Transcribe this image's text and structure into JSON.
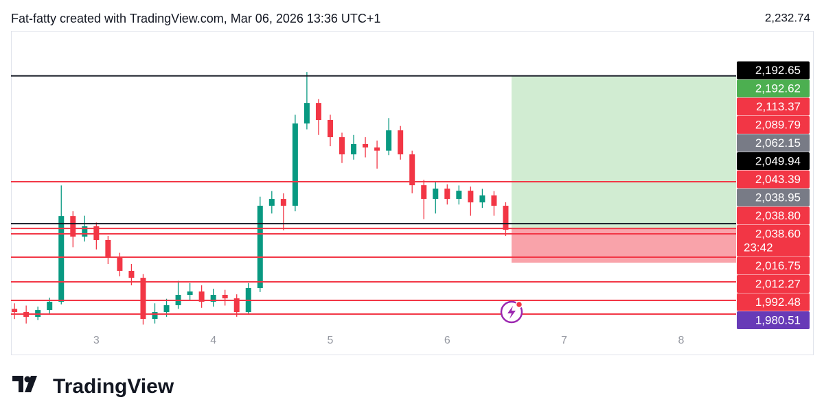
{
  "chart_data": {
    "type": "candlestick",
    "title": "Fat-fatty created with TradingView.com, Mar 06, 2026 13:36 UTC+1",
    "brand": "TradingView",
    "x": [
      2.3,
      2.4,
      2.5,
      2.6,
      2.7,
      2.8,
      2.9,
      3.0,
      3.1,
      3.2,
      3.3,
      3.4,
      3.5,
      3.6,
      3.7,
      3.8,
      3.9,
      4.0,
      4.1,
      4.2,
      4.3,
      4.4,
      4.5,
      4.6,
      4.7,
      4.8,
      4.9,
      5.0,
      5.1,
      5.2,
      5.3,
      5.4,
      5.5,
      5.6,
      5.7,
      5.8,
      5.9,
      6.0,
      6.1,
      6.2,
      6.3,
      6.4,
      6.5
    ],
    "open": [
      1985,
      1982.2,
      1977.9,
      1984.0,
      1991.4,
      2067.7,
      2049.4,
      2058.6,
      2046.4,
      2031.1,
      2018.9,
      2012.7,
      1976.1,
      1982.2,
      1988.3,
      1997.5,
      2000.5,
      1991.4,
      1997.5,
      1994.4,
      1982.2,
      2003.6,
      2076.9,
      2083.0,
      2076.9,
      2150.2,
      2168.5,
      2153.3,
      2138.0,
      2122.7,
      2131.9,
      2128.8,
      2126.0,
      2144.1,
      2122.7,
      2095.2,
      2083.0,
      2092.2,
      2083.0,
      2090.3,
      2079.9,
      2086.1,
      2076.9
    ],
    "high": [
      1990,
      1988,
      1987,
      1995,
      2095,
      2072,
      2068,
      2062,
      2050,
      2035,
      2025,
      2016,
      1990,
      1994,
      2010,
      2008,
      2006,
      2003,
      2002,
      1998,
      2008,
      2085,
      2090,
      2088,
      2158,
      2196,
      2172,
      2158,
      2142,
      2140,
      2138,
      2135,
      2155,
      2148,
      2126,
      2100,
      2098,
      2096,
      2095,
      2094,
      2092,
      2090,
      2080
    ],
    "low": [
      1976,
      1972,
      1975,
      1980,
      1989,
      2040,
      2045,
      2038,
      2025,
      2014,
      2006,
      1971,
      1972,
      1978,
      1985,
      1992,
      1986,
      1987,
      1988,
      1978,
      1980,
      2000,
      2070,
      2055,
      2072,
      2145,
      2140,
      2130,
      2115,
      2118,
      2120,
      2110,
      2122,
      2118,
      2088,
      2065,
      2070,
      2078,
      2078,
      2068,
      2075,
      2068,
      2050
    ],
    "close": [
      1982.2,
      1977.9,
      1984.0,
      1991.4,
      2067.7,
      2049.4,
      2058.6,
      2046.4,
      2031.1,
      2018.9,
      2012.7,
      1976.1,
      1982.2,
      1988.3,
      1997.5,
      2000.5,
      1991.4,
      1997.5,
      1994.4,
      1982.2,
      2003.6,
      2076.9,
      2083.0,
      2076.9,
      2150.2,
      2168.5,
      2153.3,
      2138.0,
      2122.7,
      2131.9,
      2128.8,
      2126.0,
      2144.1,
      2122.7,
      2095.2,
      2083.0,
      2092.2,
      2083.0,
      2090.3,
      2079.9,
      2086.1,
      2076.9,
      2055.5
    ],
    "up_color": "#089981",
    "down_color": "#f23645",
    "xlim": [
      2.27,
      8.47
    ],
    "xticks": [
      3,
      4,
      5,
      6,
      7,
      8
    ],
    "ylim": [
      1970,
      2232.74
    ],
    "yticks": [
      {
        "value": 2232.74,
        "label": "2,232.74"
      }
    ],
    "levels": [
      {
        "value": 2192.65,
        "color": "#131722"
      },
      {
        "value": 2098.3,
        "color": "#f23645"
      },
      {
        "value": 2061.0,
        "color": "#131722"
      },
      {
        "value": 2056.7,
        "color": "#f23645"
      },
      {
        "value": 2051.9,
        "color": "#f23645"
      },
      {
        "value": 2031.1,
        "color": "#f23645"
      },
      {
        "value": 2009.1,
        "color": "#f23645"
      },
      {
        "value": 1992.6,
        "color": "#f23645"
      },
      {
        "value": 1980.4,
        "color": "#f23645"
      }
    ],
    "position": {
      "x_start": 6.55,
      "x_end": 8.47,
      "target": 2192.62,
      "entry": 2056.7,
      "stop": 2026.2,
      "profit_color": "#d1ecd2",
      "loss_color": "#f9a3aa"
    },
    "price_labels": [
      {
        "value": 2192.65,
        "label": "2,192.65",
        "color": "#000000"
      },
      {
        "value": 2192.62,
        "label": "2,192.62",
        "color": "#4caf50"
      },
      {
        "value": 2113.37,
        "label": "2,113.37",
        "color": "#f23645"
      },
      {
        "value": 2089.79,
        "label": "2,089.79",
        "color": "#f23645"
      },
      {
        "value": 2062.15,
        "label": "2,062.15",
        "color": "#787b86"
      },
      {
        "value": 2049.94,
        "label": "2,049.94",
        "color": "#000000"
      },
      {
        "value": 2043.39,
        "label": "2,043.39",
        "color": "#f23645"
      },
      {
        "value": 2038.95,
        "label": "2,038.95",
        "color": "#787b86"
      },
      {
        "value": 2038.8,
        "label": "2,038.80",
        "color": "#f23645"
      },
      {
        "value": 2038.6,
        "label": "2,038.60",
        "color": "#f23645",
        "countdown": "23:42"
      },
      {
        "value": 2016.75,
        "label": "2,016.75",
        "color": "#f23645"
      },
      {
        "value": 2012.27,
        "label": "2,012.27",
        "color": "#f23645"
      },
      {
        "value": 1992.48,
        "label": "1,992.48",
        "color": "#f23645"
      },
      {
        "value": 1980.51,
        "label": "1,980.51",
        "color": "#673ab7"
      }
    ]
  }
}
